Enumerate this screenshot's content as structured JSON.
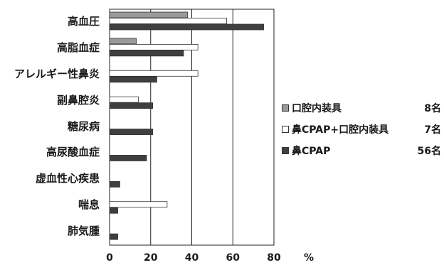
{
  "chart_data": {
    "type": "bar",
    "orientation": "horizontal",
    "categories": [
      "高血圧",
      "高脂血症",
      "アレルギー性鼻炎",
      "副鼻腔炎",
      "糖尿病",
      "高尿酸血症",
      "虚血性心疾患",
      "喘息",
      "肺気腫"
    ],
    "series": [
      {
        "name": "口腔内装具",
        "count": "8名",
        "color": "#9a9a9a",
        "values": [
          38,
          13,
          0,
          0,
          0,
          0,
          0,
          0,
          0
        ]
      },
      {
        "name": "鼻CPAP+口腔内装具",
        "count": "7名",
        "color": "#ffffff",
        "values": [
          57,
          43,
          43,
          14,
          0,
          0,
          0,
          28,
          0
        ]
      },
      {
        "name": "鼻CPAP",
        "count": "56名",
        "color": "#3f3f3f",
        "values": [
          75,
          36,
          23,
          21,
          21,
          18,
          5,
          4,
          4
        ]
      }
    ],
    "xlim": [
      0,
      80
    ],
    "x_ticks": [
      0,
      20,
      40,
      60,
      80
    ],
    "x_tick_labels": [
      "0",
      "20",
      "40",
      "60",
      "80"
    ],
    "xlabel": "%",
    "grid": "vertical gridlines at 20, 40, 60",
    "legend": "right"
  }
}
